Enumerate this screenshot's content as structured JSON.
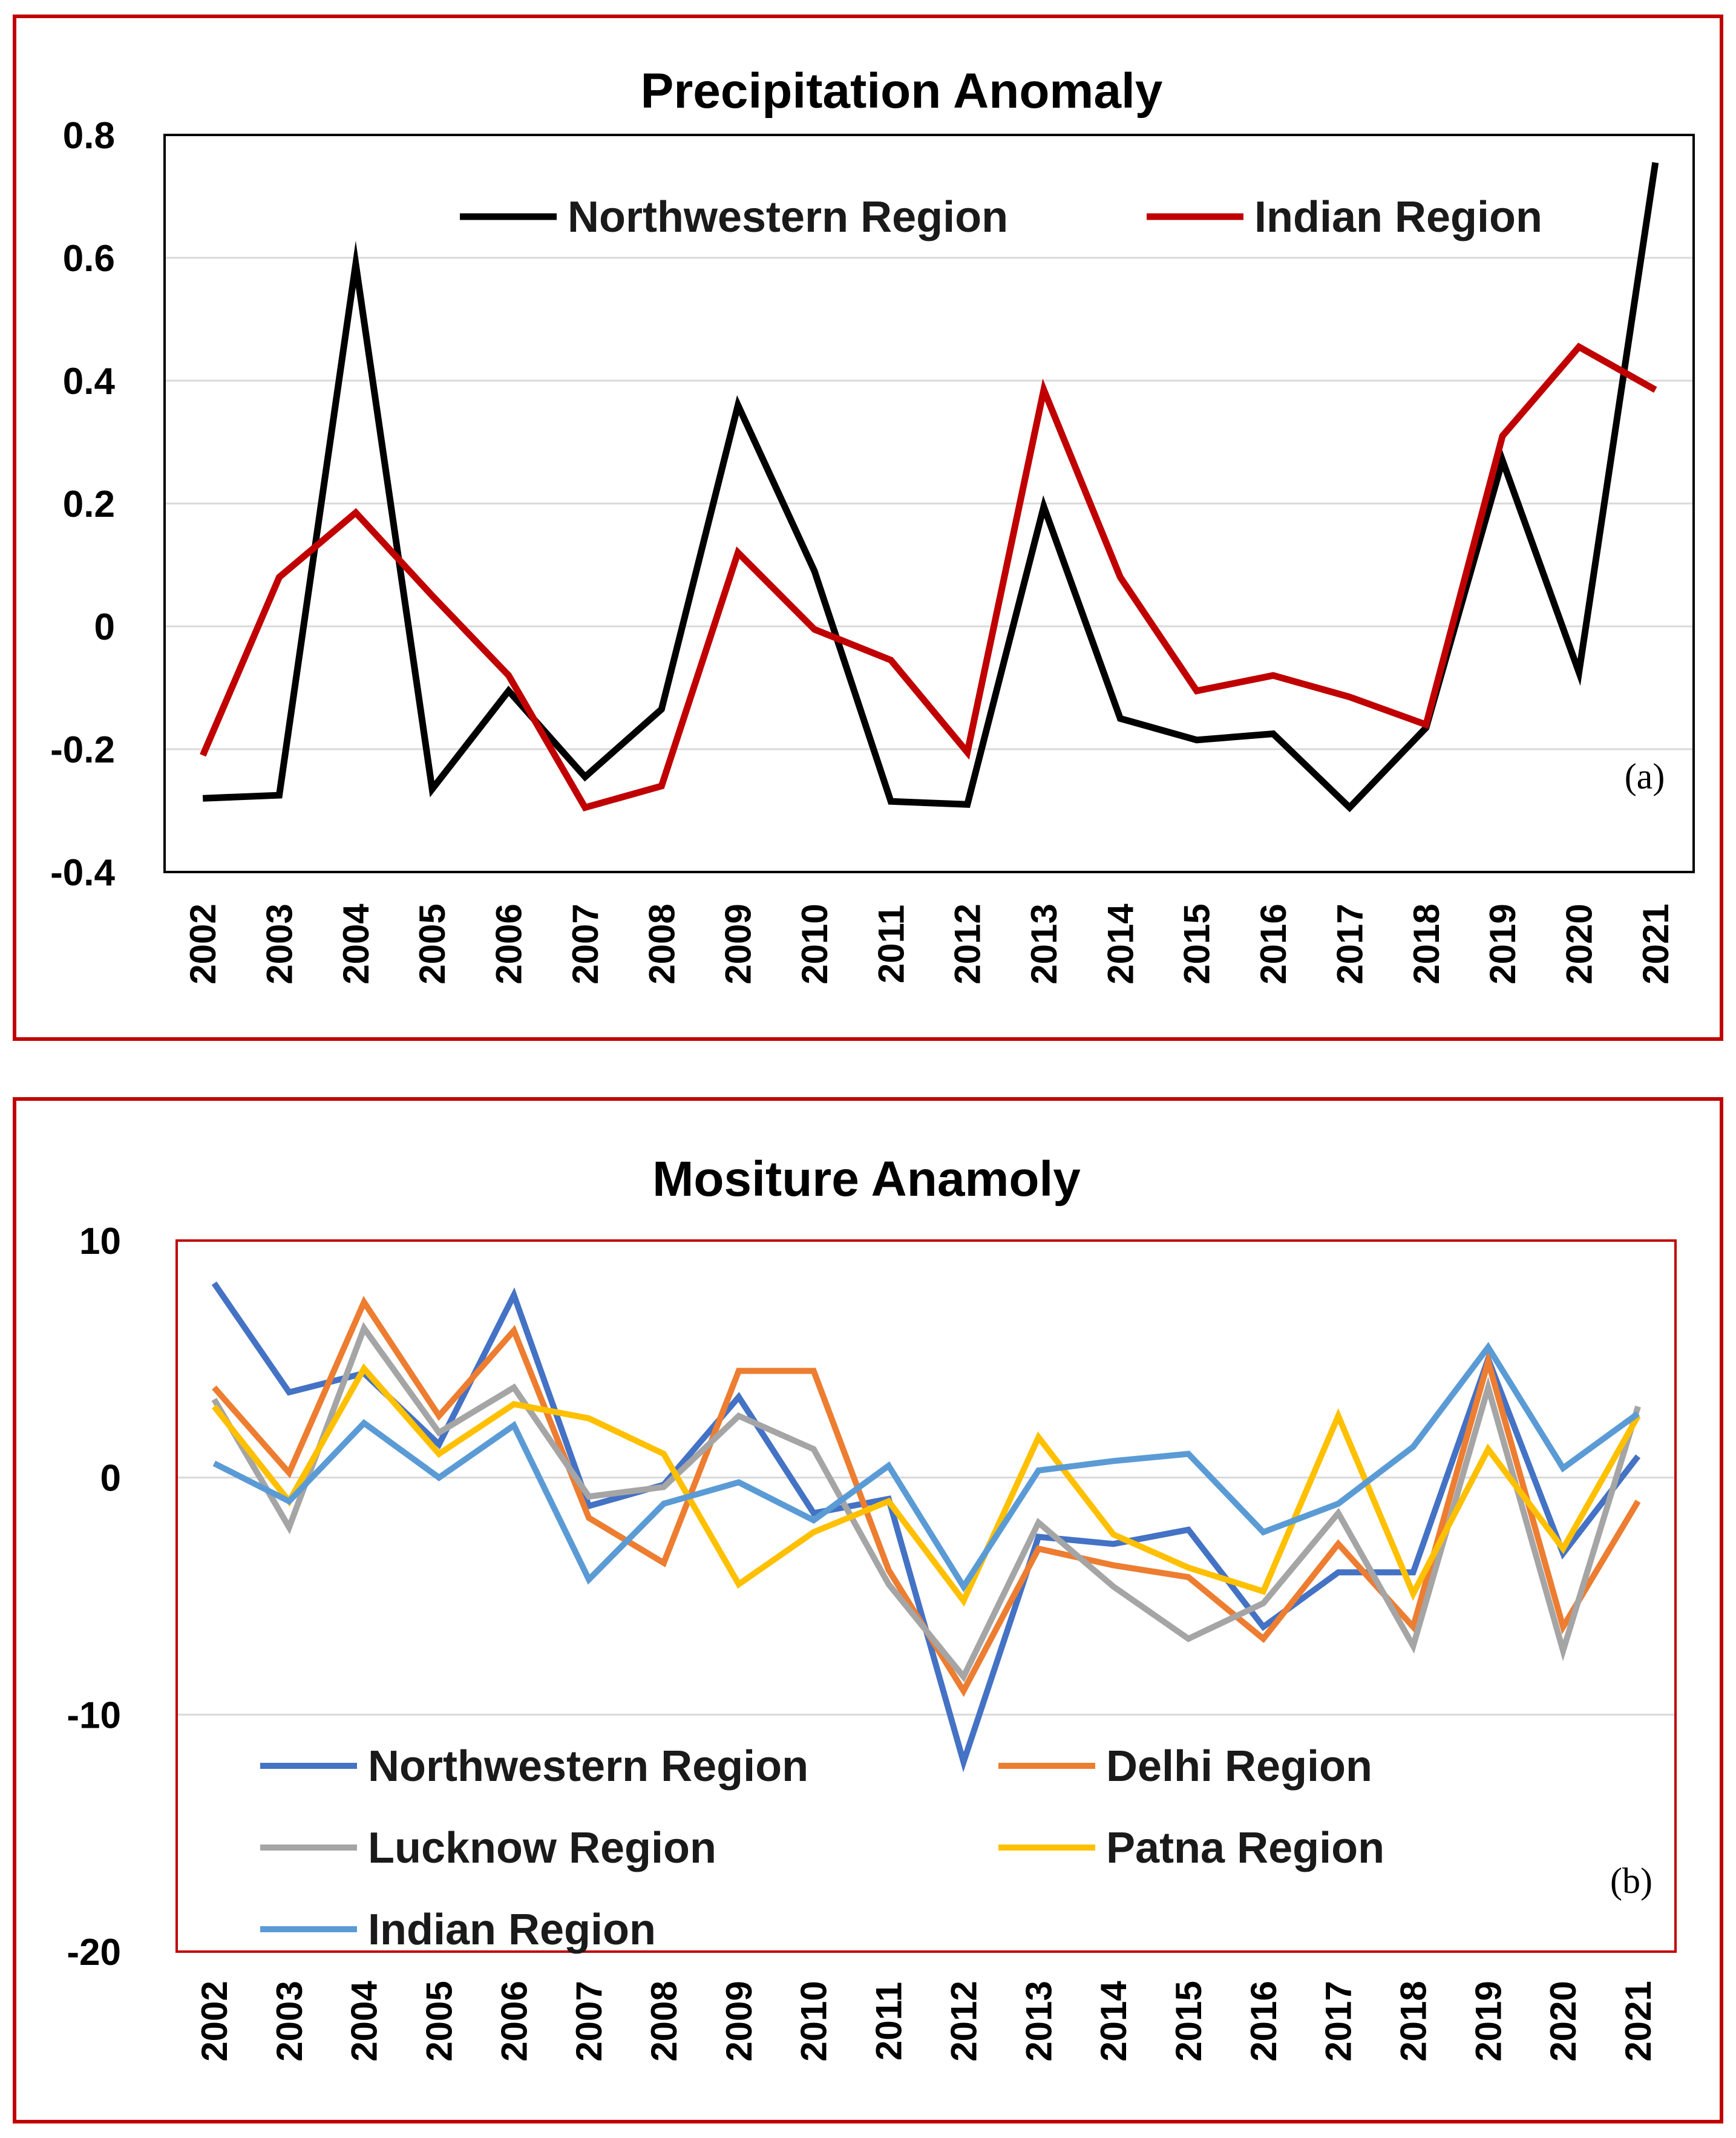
{
  "chart_data": [
    {
      "type": "line",
      "title": "Precipitation Anomaly",
      "panel_label": "(a)",
      "xlabel": "",
      "ylabel": "",
      "ylim": [
        -0.4,
        0.8
      ],
      "yticks": [
        -0.4,
        -0.2,
        0,
        0.2,
        0.4,
        0.6,
        0.8
      ],
      "ytick_labels": [
        "-0.4",
        "-0.2",
        "0",
        "0.2",
        "0.4",
        "0.6",
        "0.8"
      ],
      "grid": true,
      "legend_position": "top",
      "categories": [
        "2002",
        "2003",
        "2004",
        "2005",
        "2006",
        "2007",
        "2008",
        "2009",
        "2010",
        "2011",
        "2012",
        "2013",
        "2014",
        "2015",
        "2016",
        "2017",
        "2018",
        "2019",
        "2020",
        "2021"
      ],
      "series": [
        {
          "name": "Northwestern Region",
          "color": "#000000",
          "values": [
            -0.28,
            -0.275,
            0.59,
            -0.265,
            -0.105,
            -0.245,
            -0.135,
            0.36,
            0.09,
            -0.285,
            -0.29,
            0.195,
            -0.15,
            -0.185,
            -0.175,
            -0.295,
            -0.165,
            0.27,
            -0.075,
            0.755
          ]
        },
        {
          "name": "Indian Region",
          "color": "#c00000",
          "values": [
            -0.21,
            0.08,
            0.185,
            0.05,
            -0.08,
            -0.295,
            -0.26,
            0.12,
            -0.005,
            -0.055,
            -0.205,
            0.385,
            0.08,
            -0.105,
            -0.08,
            -0.115,
            -0.16,
            0.31,
            0.455,
            0.385
          ]
        }
      ]
    },
    {
      "type": "line",
      "title": "Mositure Anamoly",
      "panel_label": "(b)",
      "xlabel": "",
      "ylabel": "",
      "ylim": [
        -20,
        10
      ],
      "yticks": [
        -20,
        -10,
        0,
        10
      ],
      "ytick_labels": [
        "-20",
        "-10",
        "0",
        "10"
      ],
      "grid": true,
      "legend_position": "bottom-left",
      "categories": [
        "2002",
        "2003",
        "2004",
        "2005",
        "2006",
        "2007",
        "2008",
        "2009",
        "2010",
        "2011",
        "2012",
        "2013",
        "2014",
        "2015",
        "2016",
        "2017",
        "2018",
        "2019",
        "2020",
        "2021"
      ],
      "series": [
        {
          "name": "Northwestern Region",
          "color": "#4472c4",
          "values": [
            8.2,
            3.6,
            4.4,
            1.4,
            7.7,
            -1.2,
            -0.3,
            3.4,
            -1.5,
            -0.9,
            -12.0,
            -2.5,
            -2.8,
            -2.2,
            -6.3,
            -4.0,
            -4.0,
            5.0,
            -3.2,
            0.9
          ]
        },
        {
          "name": "Delhi Region",
          "color": "#ed7d31",
          "values": [
            3.8,
            0.2,
            7.4,
            2.6,
            6.2,
            -1.7,
            -3.6,
            4.5,
            4.5,
            -3.9,
            -9.0,
            -3.0,
            -3.7,
            -4.2,
            -6.8,
            -2.8,
            -6.3,
            4.9,
            -6.3,
            -1.0
          ]
        },
        {
          "name": "Lucknow Region",
          "color": "#a5a5a5",
          "values": [
            3.3,
            -2.1,
            6.3,
            1.9,
            3.8,
            -0.8,
            -0.4,
            2.6,
            1.2,
            -4.5,
            -8.4,
            -1.9,
            -4.6,
            -6.8,
            -5.3,
            -1.5,
            -7.1,
            3.8,
            -7.3,
            3.0
          ]
        },
        {
          "name": "Patna Region",
          "color": "#ffc000",
          "values": [
            3.0,
            -1.0,
            4.6,
            1.0,
            3.1,
            2.5,
            1.0,
            -4.5,
            -2.3,
            -1.0,
            -5.2,
            1.7,
            -2.4,
            -3.8,
            -4.8,
            2.6,
            -4.9,
            1.2,
            -3.0,
            2.6
          ]
        },
        {
          "name": "Indian Region",
          "color": "#5b9bd5",
          "values": [
            0.6,
            -1.0,
            2.3,
            0.0,
            2.2,
            -4.3,
            -1.1,
            -0.2,
            -1.8,
            0.5,
            -4.6,
            0.3,
            0.7,
            1.0,
            -2.3,
            -1.1,
            1.3,
            5.5,
            0.4,
            2.7
          ]
        }
      ]
    }
  ]
}
